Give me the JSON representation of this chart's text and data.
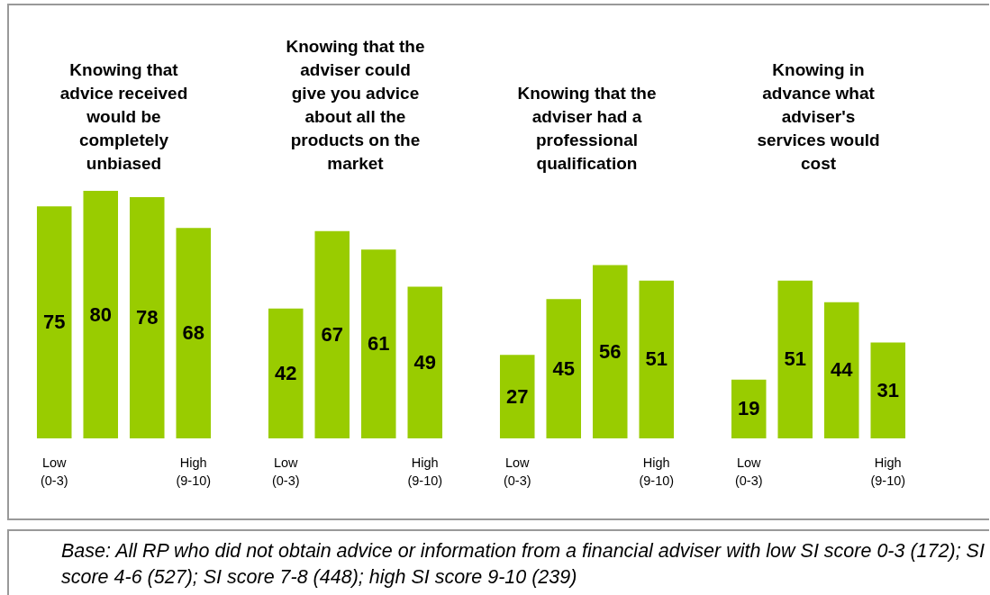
{
  "chart_data": [
    {
      "type": "bar",
      "title": "Knowing that advice received would be completely unbiased",
      "categories": [
        "Low (0-3)",
        null,
        null,
        "High (9-10)"
      ],
      "values": [
        75,
        80,
        78,
        68
      ],
      "color": "#99cc00",
      "data_labels": true,
      "tick_labels": "x",
      "annotations": [
        "Base: All RP who did not obtain advice or information from a financial adviser with low SI score 0-3 (172); SI score 4-6 (527); SI score 7-8 (448); high SI score 9-10 (239)"
      ]
    },
    {
      "type": "bar",
      "title": "Knowing that the adviser could give you advice about all the products on the market",
      "categories": [
        "Low (0-3)",
        null,
        null,
        "High (9-10)"
      ],
      "values": [
        42,
        67,
        61,
        49
      ],
      "color": "#99cc00",
      "data_labels": true,
      "tick_labels": "x"
    },
    {
      "type": "bar",
      "title": "Knowing that the adviser had a professional qualification",
      "categories": [
        "Low (0-3)",
        null,
        null,
        "High (9-10)"
      ],
      "values": [
        27,
        45,
        56,
        51
      ],
      "color": "#99cc00",
      "data_labels": true,
      "tick_labels": "x"
    },
    {
      "type": "bar",
      "title": "Knowing in advance what adviser's services would cost",
      "categories": [
        "Low (0-3)",
        null,
        null,
        "High (9-10)"
      ],
      "values": [
        19,
        51,
        44,
        31
      ],
      "color": "#99cc00",
      "data_labels": true,
      "tick_labels": "x"
    }
  ]
}
